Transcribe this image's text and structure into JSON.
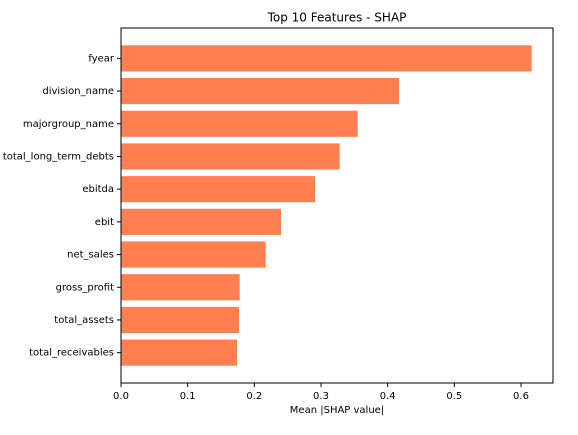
{
  "chart_data": {
    "type": "barh",
    "title": "Top 10 Features - SHAP",
    "x_label": "Mean |SHAP value|",
    "categories": [
      "fyear",
      "division_name",
      "majorgroup_name",
      "total_long_term_debts",
      "ebitda",
      "ebit",
      "net_sales",
      "gross_profit",
      "total_assets",
      "total_receivables"
    ],
    "values": [
      0.616,
      0.417,
      0.355,
      0.328,
      0.291,
      0.24,
      0.217,
      0.178,
      0.177,
      0.174
    ],
    "color": "#ff7f50",
    "xlim": [
      0,
      0.648
    ],
    "xticks": [
      {
        "value": 0,
        "label": "0.0"
      },
      0.1,
      0.2,
      0.3,
      0.4,
      0.5,
      0.6
    ]
  }
}
